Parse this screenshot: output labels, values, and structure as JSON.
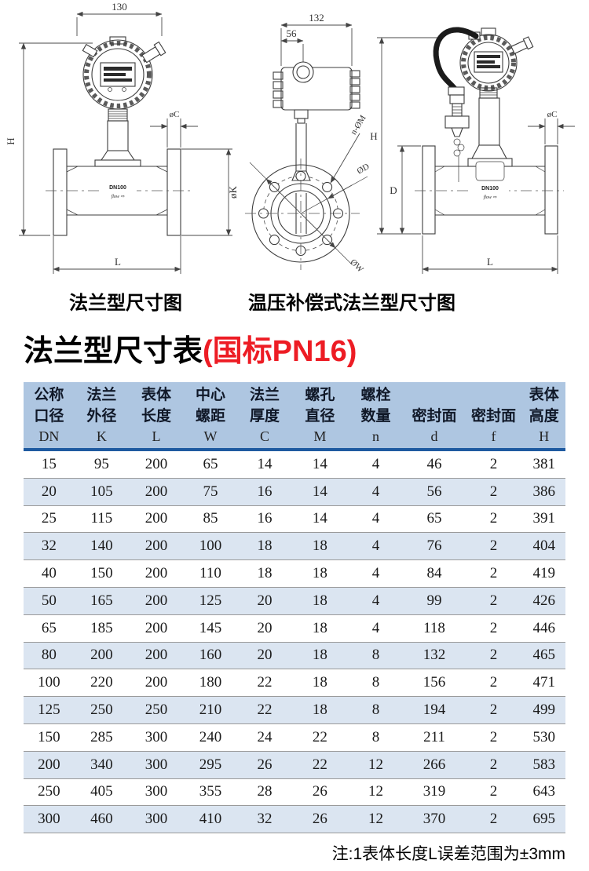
{
  "drawings": {
    "captions": {
      "left": "法兰型尺寸图",
      "right": "温压补偿式法兰型尺寸图"
    },
    "left": {
      "dim_width": "130",
      "dim_height": "H",
      "dim_flange_thickness": "øC",
      "dim_flange_od": "øK",
      "dim_length": "L",
      "body_label": "DN100",
      "flow_label": "flow ⇨"
    },
    "middle": {
      "dim_width": "132",
      "dim_head": "56",
      "dim_bolts": "n-ØM",
      "dim_inner": "ØD",
      "dim_outer": "ØW"
    },
    "right": {
      "dim_height": "H",
      "dim_body": "D",
      "dim_flange_thickness": "øC",
      "dim_length": "L",
      "body_label": "DN100",
      "flow_label": "flow ⇨"
    }
  },
  "title": {
    "text": "法兰型尺寸表",
    "suffix": "(国标PN16)"
  },
  "table": {
    "columns": [
      {
        "line1": "公称",
        "line2": "口径",
        "symbol": "DN"
      },
      {
        "line1": "法兰",
        "line2": "外径",
        "symbol": "K"
      },
      {
        "line1": "表体",
        "line2": "长度",
        "symbol": "L"
      },
      {
        "line1": "中心",
        "line2": "螺距",
        "symbol": "W"
      },
      {
        "line1": "法兰",
        "line2": "厚度",
        "symbol": "C"
      },
      {
        "line1": "螺孔",
        "line2": "直径",
        "symbol": "M"
      },
      {
        "line1": "螺栓",
        "line2": "数量",
        "symbol": "n"
      },
      {
        "line1": "",
        "line2": "密封面",
        "symbol": "d"
      },
      {
        "line1": "",
        "line2": "密封面",
        "symbol": "f"
      },
      {
        "line1": "表体",
        "line2": "高度",
        "symbol": "H"
      }
    ],
    "rows": [
      [
        "15",
        "95",
        "200",
        "65",
        "14",
        "14",
        "4",
        "46",
        "2",
        "381"
      ],
      [
        "20",
        "105",
        "200",
        "75",
        "16",
        "14",
        "4",
        "56",
        "2",
        "386"
      ],
      [
        "25",
        "115",
        "200",
        "85",
        "16",
        "14",
        "4",
        "65",
        "2",
        "391"
      ],
      [
        "32",
        "140",
        "200",
        "100",
        "18",
        "18",
        "4",
        "76",
        "2",
        "404"
      ],
      [
        "40",
        "150",
        "200",
        "110",
        "18",
        "18",
        "4",
        "84",
        "2",
        "419"
      ],
      [
        "50",
        "165",
        "200",
        "125",
        "20",
        "18",
        "4",
        "99",
        "2",
        "426"
      ],
      [
        "65",
        "185",
        "200",
        "145",
        "20",
        "18",
        "4",
        "118",
        "2",
        "446"
      ],
      [
        "80",
        "200",
        "200",
        "160",
        "20",
        "18",
        "8",
        "132",
        "2",
        "465"
      ],
      [
        "100",
        "220",
        "200",
        "180",
        "22",
        "18",
        "8",
        "156",
        "2",
        "471"
      ],
      [
        "125",
        "250",
        "250",
        "210",
        "22",
        "18",
        "8",
        "194",
        "2",
        "499"
      ],
      [
        "150",
        "285",
        "300",
        "240",
        "24",
        "22",
        "8",
        "211",
        "2",
        "530"
      ],
      [
        "200",
        "340",
        "300",
        "295",
        "26",
        "22",
        "12",
        "266",
        "2",
        "583"
      ],
      [
        "250",
        "405",
        "300",
        "355",
        "28",
        "26",
        "12",
        "319",
        "2",
        "643"
      ],
      [
        "300",
        "460",
        "300",
        "410",
        "32",
        "26",
        "12",
        "370",
        "2",
        "695"
      ]
    ]
  },
  "note": "注:1表体长度L误差范围为±3mm",
  "colors": {
    "header_bg": "#aec6e1",
    "header_rule": "#1e5aa0",
    "row_alt": "#dbe5f1",
    "row_line": "#9a9a9a",
    "accent_red": "#ed1c24"
  }
}
